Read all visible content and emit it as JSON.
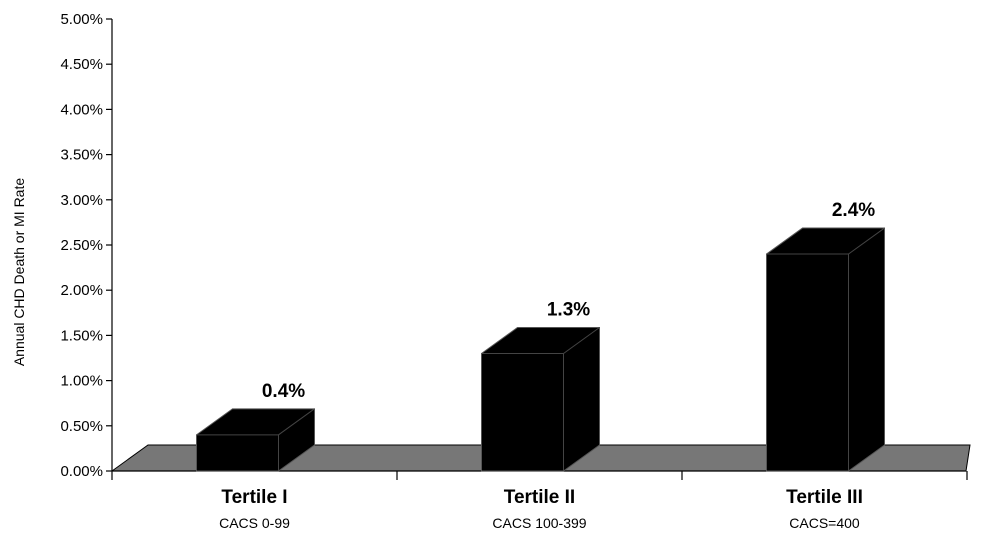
{
  "chart_data": {
    "type": "bar",
    "categories": [
      "Tertile I",
      "Tertile II",
      "Tertile III"
    ],
    "category_sublabels": [
      "CACS 0-99",
      "CACS 100-399",
      "CACS=400"
    ],
    "values": [
      0.4,
      1.3,
      2.4
    ],
    "data_labels": [
      "0.4%",
      "1.3%",
      "2.4%"
    ],
    "ylabel": "Annual CHD Death or MI Rate",
    "ylim": [
      0,
      5
    ],
    "yticks": [
      0,
      0.5,
      1.0,
      1.5,
      2.0,
      2.5,
      3.0,
      3.5,
      4.0,
      4.5,
      5.0
    ],
    "ytick_labels": [
      "0.00%",
      "0.50%",
      "1.00%",
      "1.50%",
      "2.00%",
      "2.50%",
      "3.00%",
      "3.50%",
      "4.00%",
      "4.50%",
      "5.00%"
    ],
    "grid": false,
    "style": "3d",
    "colors": {
      "bar": "#000000",
      "floor": "#777777",
      "axis": "#000000"
    }
  }
}
